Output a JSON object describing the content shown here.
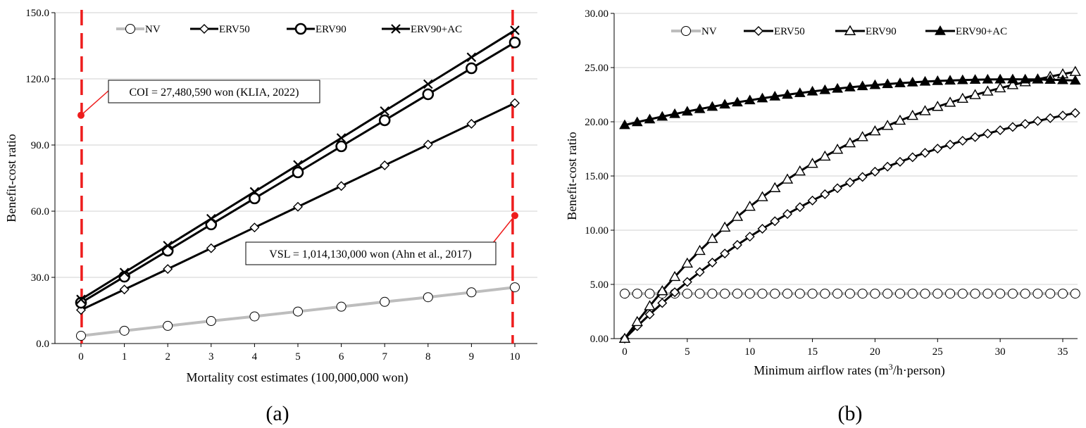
{
  "chart_data": [
    {
      "type": "line",
      "panel_label": "(a)",
      "xlabel": "Mortality cost estimates (100,000,000 won)",
      "ylabel": "Benefit-cost ratio",
      "xlim": [
        0,
        10
      ],
      "ylim": [
        0,
        150
      ],
      "x_ticks": [
        "0",
        "1",
        "2",
        "3",
        "4",
        "5",
        "6",
        "7",
        "8",
        "9",
        "10"
      ],
      "y_ticks": [
        "0.0",
        "30.0",
        "60.0",
        "90.0",
        "120.0",
        "150.0"
      ],
      "grid": true,
      "legend_position": "top",
      "x": [
        0,
        1,
        2,
        3,
        4,
        5,
        6,
        7,
        8,
        9,
        10
      ],
      "series": [
        {
          "name": "NV",
          "color": "#bdbdbd",
          "marker": "circle-open",
          "values": [
            3.5,
            5.8,
            8.0,
            10.2,
            12.3,
            14.5,
            16.7,
            18.9,
            21.0,
            23.2,
            25.5
          ]
        },
        {
          "name": "ERV50",
          "color": "#000000",
          "marker": "diamond-open",
          "values": [
            15.2,
            24.5,
            33.8,
            43.2,
            52.6,
            62.0,
            71.4,
            80.8,
            90.2,
            99.6,
            109.0
          ]
        },
        {
          "name": "ERV90",
          "color": "#000000",
          "marker": "circle-open-bold",
          "values": [
            18.5,
            30.3,
            42.1,
            54.0,
            65.8,
            77.6,
            89.4,
            101.2,
            113.0,
            124.8,
            136.5
          ]
        },
        {
          "name": "ERV90+AC",
          "color": "#000000",
          "marker": "x",
          "values": [
            20.0,
            32.2,
            44.4,
            56.6,
            68.8,
            81.0,
            93.2,
            105.4,
            117.6,
            129.8,
            142.0
          ]
        }
      ],
      "vertical_lines": [
        0.015,
        9.95
      ],
      "annotations": [
        {
          "text": "COI = 27,480,590 won (KLIA, 2022)",
          "x": 0.0,
          "y": 103.5
        },
        {
          "text": "VSL = 1,014,130,000 won (Ahn et al., 2017)",
          "x": 10.0,
          "y": 58.0
        }
      ]
    },
    {
      "type": "line",
      "panel_label": "(b)",
      "xlabel_main": "Minimum airflow rates (m",
      "xlabel_sup": "3",
      "xlabel_tail": "/h·person)",
      "ylabel": "Benefit-cost ratio",
      "xlim": [
        -0.5,
        36
      ],
      "ylim": [
        0,
        30
      ],
      "x_ticks": [
        "0",
        "5",
        "10",
        "15",
        "20",
        "25",
        "30",
        "35"
      ],
      "y_ticks": [
        "0.00",
        "5.00",
        "10.00",
        "15.00",
        "20.00",
        "25.00",
        "30.00"
      ],
      "grid": true,
      "legend_position": "top",
      "x_range": [
        0,
        36
      ],
      "series": [
        {
          "name": "NV",
          "color": "#bdbdbd",
          "marker": "circle-open",
          "model": "constant",
          "params": {
            "value": 4.15
          }
        },
        {
          "name": "ERV50",
          "color": "#000000",
          "marker": "diamond-open",
          "model": "saturating",
          "params": {
            "max": 25.95,
            "k": 0.045,
            "start": 0
          }
        },
        {
          "name": "ERV90",
          "color": "#000000",
          "marker": "triangle-open",
          "model": "saturating",
          "params": {
            "max": 28.4,
            "k": 0.056,
            "start": 0
          }
        },
        {
          "name": "ERV90+AC",
          "color": "#000000",
          "marker": "triangle-filled",
          "model": "parabola",
          "params": {
            "a": 19.7,
            "b": 0.2725,
            "c": 0.0044
          }
        }
      ]
    }
  ]
}
